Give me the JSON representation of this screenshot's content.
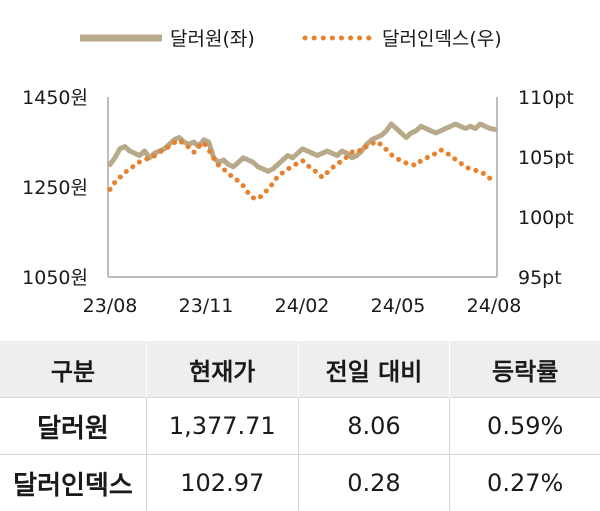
{
  "chart_data": {
    "type": "line",
    "legend": {
      "placement": "top-center"
    },
    "x_ticks": [
      "23/08",
      "23/11",
      "24/02",
      "24/05",
      "24/08"
    ],
    "y_left": {
      "ticks": [
        "1450원",
        "1250원",
        "1050원"
      ],
      "tick_values": [
        1450,
        1250,
        1050
      ],
      "range": [
        1050,
        1450
      ]
    },
    "y_right": {
      "ticks": [
        "110pt",
        "105pt",
        "100pt",
        "95pt"
      ],
      "tick_values": [
        110,
        105,
        100,
        95
      ],
      "range": [
        95,
        110
      ]
    },
    "series": [
      {
        "name": "달러원(좌)",
        "axis": "left",
        "style": "solid",
        "color": "#b8a98a",
        "values": [
          1300,
          1315,
          1335,
          1340,
          1330,
          1325,
          1320,
          1330,
          1315,
          1325,
          1330,
          1335,
          1345,
          1355,
          1360,
          1350,
          1345,
          1350,
          1340,
          1355,
          1350,
          1315,
          1305,
          1310,
          1300,
          1295,
          1305,
          1315,
          1310,
          1305,
          1295,
          1290,
          1285,
          1290,
          1300,
          1310,
          1320,
          1315,
          1325,
          1335,
          1330,
          1325,
          1320,
          1325,
          1330,
          1325,
          1320,
          1330,
          1325,
          1315,
          1320,
          1330,
          1345,
          1355,
          1360,
          1365,
          1375,
          1390,
          1380,
          1370,
          1360,
          1370,
          1375,
          1385,
          1380,
          1375,
          1370,
          1375,
          1380,
          1385,
          1390,
          1385,
          1380,
          1385,
          1380,
          1390,
          1385,
          1380,
          1378
        ]
      },
      {
        "name": "달러인덱스(우)",
        "axis": "right",
        "style": "dotted",
        "color": "#e8802c",
        "values": [
          102.3,
          102.9,
          103.3,
          103.7,
          104.0,
          104.3,
          104.6,
          104.8,
          104.9,
          105.1,
          105.4,
          105.6,
          105.9,
          106.2,
          106.4,
          106.1,
          105.8,
          105.4,
          105.9,
          106.2,
          105.6,
          104.9,
          104.3,
          104.0,
          103.6,
          103.3,
          103.0,
          102.6,
          102.0,
          101.6,
          101.5,
          101.9,
          102.3,
          102.8,
          103.4,
          103.7,
          104.0,
          104.2,
          104.5,
          104.7,
          104.3,
          104.0,
          103.7,
          103.3,
          103.7,
          104.1,
          104.4,
          104.7,
          105.0,
          105.4,
          105.6,
          105.5,
          105.9,
          106.1,
          106.3,
          106.0,
          105.6,
          105.2,
          104.9,
          104.7,
          104.5,
          104.4,
          104.3,
          104.7,
          104.9,
          105.1,
          105.3,
          105.6,
          105.4,
          105.1,
          104.8,
          104.5,
          104.2,
          104.0,
          103.9,
          103.7,
          103.6,
          103.2,
          102.9
        ]
      }
    ]
  },
  "table": {
    "headers": [
      "구분",
      "현재가",
      "전일 대비",
      "등락률"
    ],
    "rows": [
      {
        "name": "달러원",
        "price": "1,377.71",
        "change": "8.06",
        "rate": "0.59%"
      },
      {
        "name": "달러인덱스",
        "price": "102.97",
        "change": "0.28",
        "rate": "0.27%"
      }
    ]
  }
}
